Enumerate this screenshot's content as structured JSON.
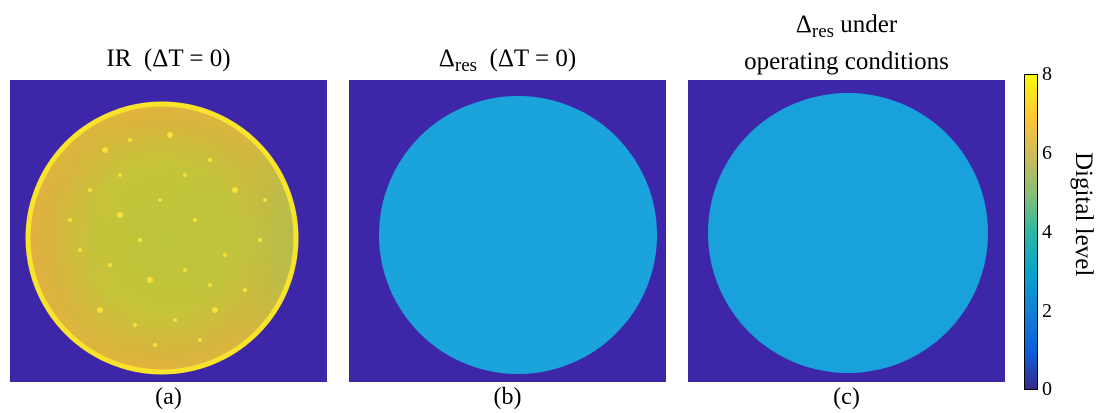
{
  "panels": [
    {
      "title_main": "IR",
      "title_cond": "(ΔT = 0)",
      "caption": "(a)"
    },
    {
      "title_symbol": "Δ",
      "title_sub": "res",
      "title_cond": "(ΔT = 0)",
      "caption": "(b)"
    },
    {
      "title_symbol": "Δ",
      "title_sub": "res",
      "title_line1_suffix": "under",
      "title_line2": "operating conditions",
      "caption": "(c)"
    }
  ],
  "colorbar": {
    "label": "Digital level",
    "ticks": [
      "0",
      "2",
      "4",
      "6",
      "8"
    ]
  },
  "chart_data": {
    "type": "heatmap",
    "colormap": "parula",
    "clim": [
      0,
      8
    ],
    "panels": [
      {
        "caption": "(a)",
        "background_level": 0,
        "disk_level_approx": 6.5,
        "disk_level_range": [
          5.5,
          8
        ]
      },
      {
        "caption": "(b)",
        "background_level": 0,
        "disk_level_approx": 3.5
      },
      {
        "caption": "(c)",
        "background_level": 0,
        "disk_level_approx": 3.5
      }
    ],
    "colors": {
      "background": "#3e26a8",
      "disk_b_c": "#1aa2dc",
      "disk_a_base": "#c9c637",
      "disk_a_rim": "#f8e42a"
    }
  }
}
